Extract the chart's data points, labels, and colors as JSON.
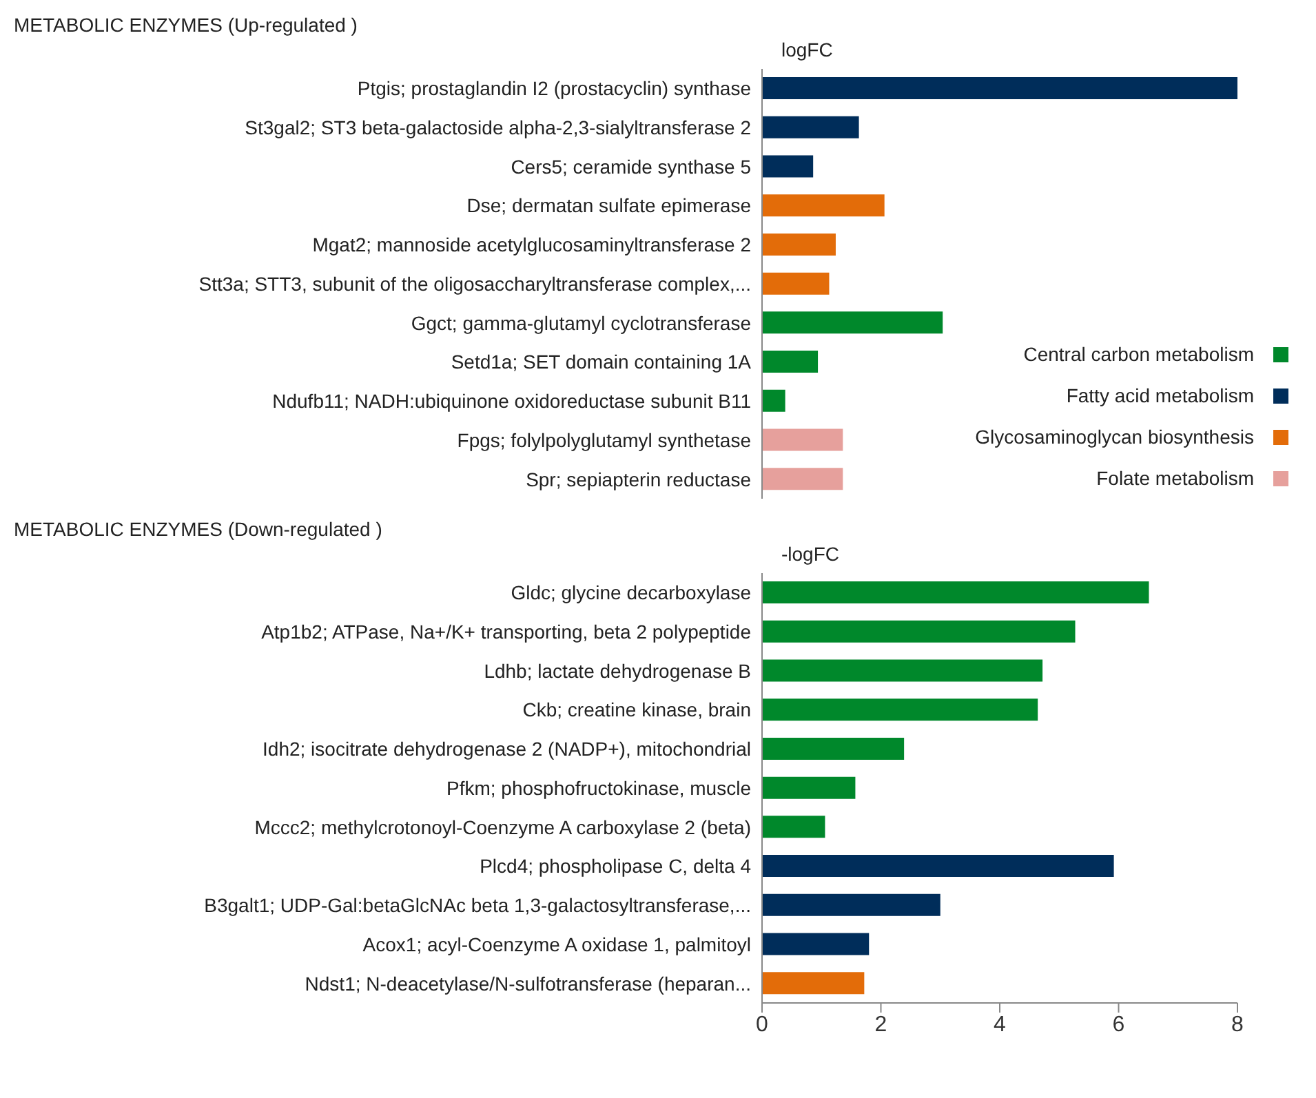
{
  "chart_data": [
    {
      "type": "bar",
      "orientation": "horizontal",
      "stacked": true,
      "title": "METABOLIC ENZYMES (Up-regulated )",
      "xlabel": "logFC",
      "categories": [
        "Ptgis; prostaglandin I2 (prostacyclin) synthase",
        "St3gal2; ST3 beta-galactoside alpha-2,3-sialyltransferase 2",
        "Cers5; ceramide synthase 5",
        "Dse; dermatan sulfate epimerase",
        "Mgat2; mannoside acetylglucosaminyltransferase 2",
        "Stt3a; STT3, subunit of the oligosaccharyltransferase complex,...",
        "Ggct; gamma-glutamyl cyclotransferase",
        "Setd1a; SET domain containing 1A",
        "Ndufb11; NADH:ubiquinone oxidoreductase subunit B11",
        "Fpgs; folylpolyglutamyl synthetase",
        "Spr; sepiapterin reductase"
      ],
      "series": [
        {
          "name": "Central carbon metabolism",
          "color": "#00882b",
          "values": [
            null,
            null,
            null,
            null,
            null,
            null,
            3.04,
            0.94,
            0.39,
            null,
            null
          ]
        },
        {
          "name": "Fatty acid metabolism",
          "color": "#002d5a",
          "values": [
            8.0,
            1.63,
            0.86,
            null,
            null,
            null,
            null,
            null,
            null,
            null,
            null
          ]
        },
        {
          "name": "Glycosaminoglycan biosynthesis",
          "color": "#e36c09",
          "values": [
            null,
            null,
            null,
            2.06,
            1.24,
            1.13,
            null,
            null,
            null,
            null,
            null
          ]
        },
        {
          "name": "Folate metabolism",
          "color": "#e6a09c",
          "values": [
            null,
            null,
            null,
            null,
            null,
            null,
            null,
            null,
            null,
            1.36,
            1.36
          ]
        }
      ],
      "xlim": [
        0,
        8
      ],
      "xticks": [
        0,
        2,
        4,
        6,
        8
      ],
      "tick_labels": "y",
      "grid": false,
      "legend": "right"
    },
    {
      "type": "bar",
      "orientation": "horizontal",
      "stacked": true,
      "title": "METABOLIC ENZYMES (Down-regulated )",
      "xlabel": "-logFC",
      "categories": [
        "Gldc; glycine decarboxylase",
        "Atp1b2; ATPase, Na+/K+ transporting, beta 2 polypeptide",
        "Ldhb; lactate dehydrogenase B",
        "Ckb; creatine kinase, brain",
        "Idh2; isocitrate dehydrogenase 2 (NADP+), mitochondrial",
        "Pfkm; phosphofructokinase, muscle",
        "Mccc2; methylcrotonoyl-Coenzyme A carboxylase 2 (beta)",
        "Plcd4; phospholipase C, delta 4",
        "B3galt1; UDP-Gal:betaGlcNAc beta 1,3-galactosyltransferase,...",
        "Acox1; acyl-Coenzyme A oxidase 1, palmitoyl",
        "Ndst1; N-deacetylase/N-sulfotransferase (heparan..."
      ],
      "series": [
        {
          "color": "#00882b",
          "values": [
            6.51,
            5.27,
            4.72,
            4.64,
            2.39,
            1.57,
            1.06,
            null,
            null,
            null,
            null
          ]
        },
        {
          "color": "#002d5a",
          "values": [
            null,
            null,
            null,
            null,
            null,
            null,
            null,
            5.92,
            3.0,
            1.8,
            null
          ]
        },
        {
          "color": "#e36c09",
          "values": [
            null,
            null,
            null,
            null,
            null,
            null,
            null,
            null,
            null,
            null,
            1.72
          ]
        }
      ],
      "xlim": [
        0,
        8
      ],
      "xticks": [
        0,
        2,
        4,
        6,
        8
      ],
      "grid": false,
      "legend": false
    }
  ]
}
